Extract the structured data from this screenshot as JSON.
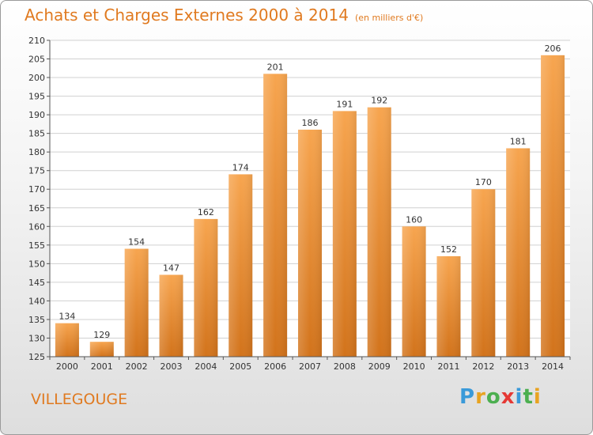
{
  "title": "Achats et Charges Externes 2000 à 2014",
  "unit_note": "(en milliers d'€)",
  "location": "VILLEGOUGE",
  "brand": {
    "name": "Proxiti",
    "letters": [
      "P",
      "r",
      "o",
      "x",
      "i",
      "t",
      "i"
    ],
    "letter_colors": [
      "#3a9ad9",
      "#e8a321",
      "#4caf50",
      "#e53935",
      "#3a9ad9",
      "#4caf50",
      "#e8a321"
    ]
  },
  "colors": {
    "bar_light": "#f7a54f",
    "bar_dark": "#d2731b",
    "title": "#e07a20",
    "grid": "#d0d0d0"
  },
  "chart_data": {
    "type": "bar",
    "categories": [
      "2000",
      "2001",
      "2002",
      "2003",
      "2004",
      "2005",
      "2006",
      "2007",
      "2008",
      "2009",
      "2010",
      "2011",
      "2012",
      "2013",
      "2014"
    ],
    "values": [
      134,
      129,
      154,
      147,
      162,
      174,
      201,
      186,
      191,
      192,
      160,
      152,
      170,
      181,
      206
    ],
    "ylim": [
      125,
      210
    ],
    "yticks": [
      125,
      130,
      135,
      140,
      145,
      150,
      155,
      160,
      165,
      170,
      175,
      180,
      185,
      190,
      195,
      200,
      205,
      210
    ],
    "grid": true,
    "xlabel": "",
    "ylabel": ""
  }
}
